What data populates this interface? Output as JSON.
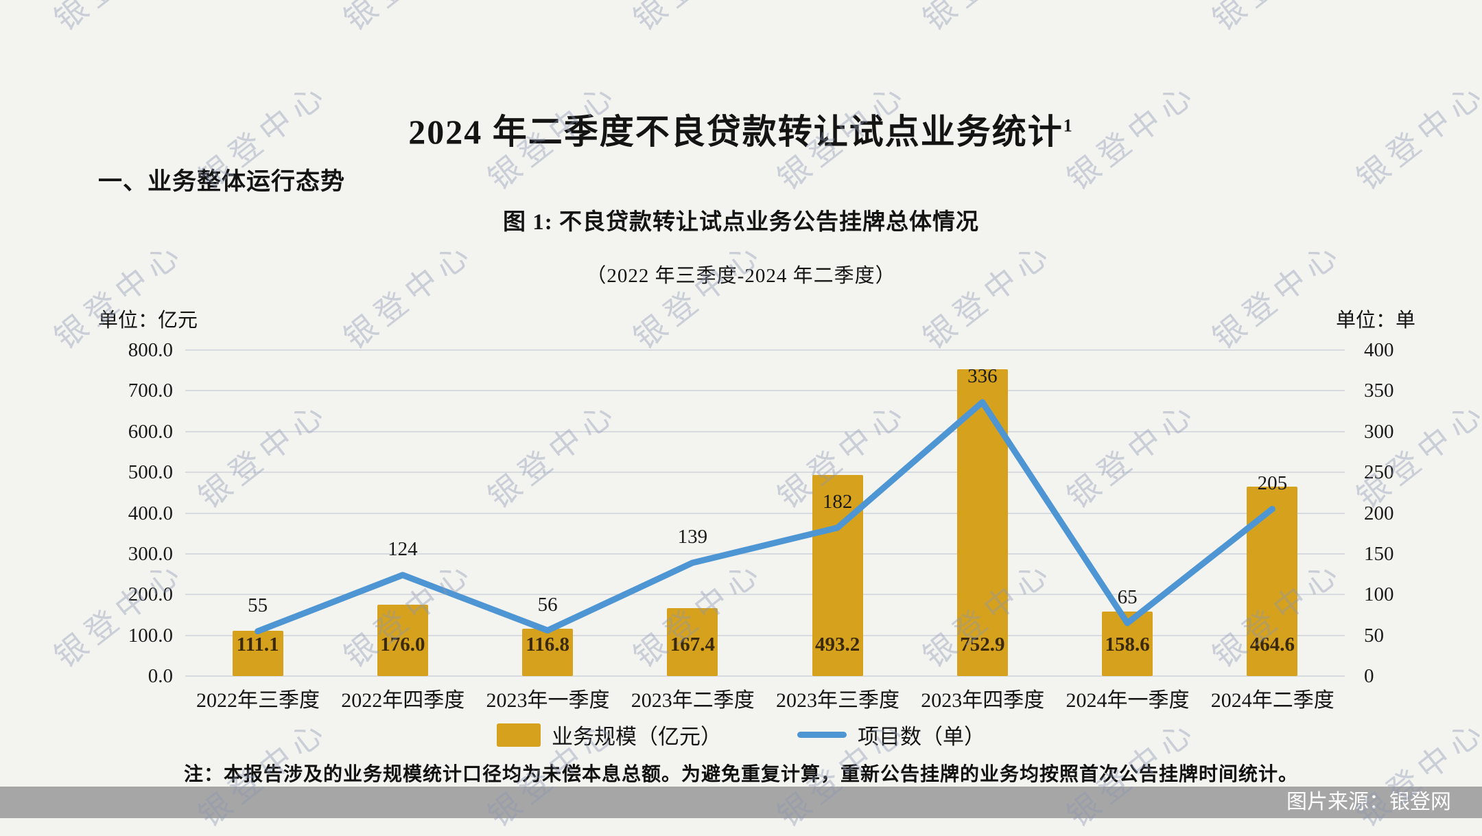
{
  "page": {
    "title": "2024 年二季度不良贷款转让试点业务统计",
    "title_superscript": "1",
    "section_heading": "一、业务整体运行态势",
    "note": "注：本报告涉及的业务规模统计口径均为未偿本息总额。为避免重复计算，重新公告挂牌的业务均按照首次公告挂牌时间统计。",
    "source_caption": "图片来源：银登网",
    "watermark_text": "银登中心"
  },
  "chart_data": {
    "type": "bar+line (dual axis)",
    "title": "图 1: 不良贷款转让试点业务公告挂牌总体情况",
    "subtitle": "（2022 年三季度-2024 年二季度）",
    "grid": true,
    "legend_position": "bottom",
    "categories": [
      "2022年三季度",
      "2022年四季度",
      "2023年一季度",
      "2023年二季度",
      "2023年三季度",
      "2023年四季度",
      "2024年一季度",
      "2024年二季度"
    ],
    "left_axis": {
      "unit": "单位：亿元",
      "min": 0,
      "max": 800,
      "tick_step": 100,
      "tick_labels_top_down": [
        "800.0",
        "700.0",
        "600.0",
        "500.0",
        "400.0",
        "300.0",
        "200.0",
        "100.0",
        "0.0"
      ]
    },
    "right_axis": {
      "unit": "单位：单",
      "min": 0,
      "max": 400,
      "tick_step": 50,
      "tick_labels_top_down": [
        "400",
        "350",
        "300",
        "250",
        "200",
        "150",
        "100",
        "50",
        "0"
      ]
    },
    "series": [
      {
        "name": "业务规模（亿元）",
        "type": "bar",
        "axis": "left",
        "color": "#d6a21d",
        "values": [
          111.1,
          176.0,
          116.8,
          167.4,
          493.2,
          752.9,
          158.6,
          464.6
        ],
        "value_labels": [
          "111.1",
          "176.0",
          "116.8",
          "167.4",
          "493.2",
          "752.9",
          "158.6",
          "464.6"
        ]
      },
      {
        "name": "项目数（单）",
        "type": "line",
        "axis": "right",
        "color": "#4d96d3",
        "values": [
          55,
          124,
          56,
          139,
          182,
          336,
          65,
          205
        ],
        "value_labels": [
          "55",
          "124",
          "56",
          "139",
          "182",
          "336",
          "65",
          "205"
        ]
      }
    ]
  },
  "colors": {
    "background": "#f3f3f0",
    "bar": "#d6a21d",
    "line": "#4d96d3",
    "gridline": "#d7dadf",
    "source_band": "#a6a6a6",
    "watermark": "rgba(141,151,178,0.40)"
  }
}
